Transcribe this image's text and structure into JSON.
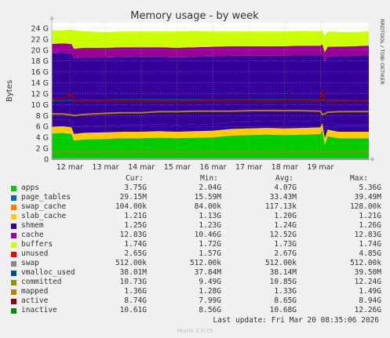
{
  "chart_data": {
    "type": "area",
    "title": "Memory usage - by week",
    "ylabel": "Bytes",
    "y_unit": "G",
    "ylim": [
      0,
      25
    ],
    "yticks": [
      0,
      2,
      4,
      6,
      8,
      10,
      12,
      14,
      16,
      18,
      20,
      22,
      24
    ],
    "ytick_labels": [
      "0",
      "2 G",
      "4 G",
      "6 G",
      "8 G",
      "10 G",
      "12 G",
      "14 G",
      "16 G",
      "18 G",
      "20 G",
      "22 G",
      "24 G"
    ],
    "x_range": [
      11.5,
      20.35
    ],
    "xticks": [
      12,
      13,
      14,
      15,
      16,
      17,
      18,
      19
    ],
    "xtick_labels": [
      "12 mar",
      "13 mar",
      "14 mar",
      "15 mar",
      "16 mar",
      "17 mar",
      "18 mar",
      "19 mar"
    ],
    "stack_order": [
      "apps",
      "page_tables",
      "swap_cache",
      "slab_cache",
      "shmem",
      "cache",
      "buffers",
      "unused"
    ],
    "line_series": [
      "swap",
      "vmalloc_used",
      "committed",
      "mapped",
      "active",
      "inactive"
    ],
    "x": [
      11.5,
      11.8,
      12.05,
      12.12,
      12.4,
      13.0,
      13.5,
      14.0,
      14.5,
      15.0,
      15.5,
      16.0,
      16.5,
      17.0,
      17.5,
      18.0,
      18.5,
      19.0,
      19.05,
      19.12,
      19.2,
      19.5,
      20.0,
      20.35
    ],
    "series": [
      {
        "name": "apps",
        "color": "#00cc00",
        "values": [
          4.7,
          4.8,
          4.6,
          3.4,
          3.6,
          3.7,
          3.8,
          3.8,
          3.9,
          3.8,
          3.9,
          4.0,
          4.3,
          4.4,
          4.5,
          4.4,
          4.5,
          4.6,
          5.36,
          2.6,
          4.2,
          3.8,
          3.8,
          3.8
        ]
      },
      {
        "name": "page_tables",
        "color": "#0066b3",
        "values": [
          0.03,
          0.03,
          0.03,
          0.03,
          0.03,
          0.03,
          0.03,
          0.03,
          0.03,
          0.03,
          0.03,
          0.03,
          0.03,
          0.03,
          0.03,
          0.03,
          0.03,
          0.03,
          0.03,
          0.03,
          0.03,
          0.03,
          0.03,
          0.03
        ]
      },
      {
        "name": "swap_cache",
        "color": "#ff8000",
        "values": [
          0.0001,
          0.0001,
          0.0001,
          0.0001,
          0.0001,
          0.0001,
          0.0001,
          0.0001,
          0.0001,
          0.0001,
          0.0001,
          0.0001,
          0.0001,
          0.0001,
          0.0001,
          0.0001,
          0.0001,
          0.0001,
          0.0001,
          0.0001,
          0.0001,
          0.0001,
          0.0001,
          0.0001
        ]
      },
      {
        "name": "slab_cache",
        "color": "#ffcc00",
        "values": [
          1.2,
          1.2,
          1.2,
          1.2,
          1.2,
          1.2,
          1.2,
          1.2,
          1.2,
          1.2,
          1.2,
          1.2,
          1.2,
          1.2,
          1.2,
          1.2,
          1.2,
          1.2,
          1.2,
          1.2,
          1.2,
          1.2,
          1.2,
          1.2
        ]
      },
      {
        "name": "shmem",
        "color": "#330099",
        "values": [
          1.25,
          1.25,
          1.25,
          1.25,
          1.25,
          1.25,
          1.25,
          1.25,
          1.25,
          1.25,
          1.25,
          1.25,
          1.25,
          1.25,
          1.25,
          1.25,
          1.25,
          1.25,
          1.25,
          1.25,
          1.25,
          1.25,
          1.25,
          1.25
        ]
      },
      {
        "name": "cache",
        "color": "#330099",
        "values": [
          12.2,
          12.2,
          12.3,
          12.6,
          12.6,
          12.5,
          12.5,
          12.5,
          12.4,
          12.4,
          12.4,
          12.4,
          12.2,
          12.1,
          12.0,
          12.1,
          12.1,
          12.0,
          11.5,
          12.8,
          12.2,
          12.6,
          12.7,
          12.8
        ]
      },
      {
        "name": "buffers",
        "color": "#990099",
        "values": [
          1.74,
          1.74,
          1.74,
          1.74,
          1.74,
          1.73,
          1.73,
          1.73,
          1.73,
          1.73,
          1.73,
          1.73,
          1.73,
          1.73,
          1.73,
          1.73,
          1.72,
          1.72,
          1.72,
          1.72,
          1.72,
          1.74,
          1.74,
          1.74
        ]
      },
      {
        "name": "unused",
        "color": "#ccff00",
        "values": [
          2.5,
          2.4,
          2.6,
          3.4,
          3.0,
          2.9,
          2.9,
          2.9,
          2.9,
          3.0,
          3.0,
          2.8,
          2.7,
          2.7,
          2.7,
          2.7,
          2.7,
          2.6,
          2.6,
          2.9,
          2.8,
          2.7,
          2.6,
          2.6
        ]
      },
      {
        "name": "swap",
        "color": "#ff0000",
        "values": [
          0.0005,
          0.0005,
          0.0005,
          0.0005,
          0.0005,
          0.0005,
          0.0005,
          0.0005,
          0.0005,
          0.0005,
          0.0005,
          0.0005,
          0.0005,
          0.0005,
          0.0005,
          0.0005,
          0.0005,
          0.0005,
          0.0005,
          0.0005,
          0.0005,
          0.0005,
          0.0005,
          0.0005
        ]
      },
      {
        "name": "vmalloc_used",
        "color": "#888888",
        "values": [
          0.038,
          0.038,
          0.038,
          0.038,
          0.038,
          0.038,
          0.038,
          0.038,
          0.038,
          0.038,
          0.038,
          0.038,
          0.038,
          0.038,
          0.038,
          0.038,
          0.038,
          0.038,
          0.038,
          0.038,
          0.038,
          0.038,
          0.038,
          0.038
        ]
      },
      {
        "name": "committed",
        "color": "#004d80",
        "values": [
          10.7,
          10.7,
          10.8,
          10.7,
          10.8,
          10.8,
          10.9,
          10.9,
          10.9,
          10.9,
          10.9,
          10.8,
          10.9,
          10.9,
          10.9,
          10.9,
          10.9,
          10.8,
          10.8,
          10.7,
          10.8,
          10.8,
          10.7,
          10.7
        ]
      },
      {
        "name": "mapped",
        "color": "#8f8f00",
        "values": [
          1.35,
          1.35,
          1.35,
          1.35,
          1.35,
          1.33,
          1.33,
          1.33,
          1.33,
          1.33,
          1.33,
          1.33,
          1.33,
          1.33,
          1.33,
          1.33,
          1.33,
          1.33,
          1.35,
          1.3,
          1.33,
          1.35,
          1.36,
          1.36
        ]
      },
      {
        "name": "active",
        "color": "#b38600",
        "values": [
          8.3,
          8.3,
          8.1,
          7.99,
          8.2,
          8.4,
          8.5,
          8.5,
          8.7,
          8.7,
          8.8,
          8.8,
          8.8,
          8.9,
          8.9,
          8.9,
          8.9,
          8.8,
          8.2,
          8.3,
          8.6,
          8.7,
          8.74,
          8.74
        ]
      },
      {
        "name": "inactive",
        "color": "#990000",
        "values": [
          11.0,
          11.1,
          12.0,
          10.6,
          10.6,
          10.7,
          10.7,
          10.7,
          10.6,
          10.6,
          10.6,
          10.7,
          10.8,
          10.8,
          10.7,
          10.8,
          10.8,
          10.7,
          12.26,
          10.8,
          10.6,
          10.6,
          10.6,
          10.61
        ]
      }
    ]
  },
  "legend": {
    "headers": {
      "cur": "Cur:",
      "min": "Min:",
      "avg": "Avg:",
      "max": "Max:"
    },
    "rows": [
      {
        "name": "apps",
        "color": "#00cc00",
        "cur": "3.75G",
        "min": "2.04G",
        "avg": "4.07G",
        "max": "5.36G"
      },
      {
        "name": "page_tables",
        "color": "#0066b3",
        "cur": "29.15M",
        "min": "15.59M",
        "avg": "33.43M",
        "max": "39.49M"
      },
      {
        "name": "swap_cache",
        "color": "#ff8000",
        "cur": "104.00k",
        "min": "84.00k",
        "avg": "117.13k",
        "max": "128.00k"
      },
      {
        "name": "slab_cache",
        "color": "#ffcc00",
        "cur": "1.21G",
        "min": "1.13G",
        "avg": "1.20G",
        "max": "1.21G"
      },
      {
        "name": "shmem",
        "color": "#330099",
        "cur": "1.25G",
        "min": "1.23G",
        "avg": "1.24G",
        "max": "1.26G"
      },
      {
        "name": "cache",
        "color": "#990099",
        "cur": "12.83G",
        "min": "10.46G",
        "avg": "12.52G",
        "max": "12.83G"
      },
      {
        "name": "buffers",
        "color": "#ccff00",
        "cur": "1.74G",
        "min": "1.72G",
        "avg": "1.73G",
        "max": "1.74G"
      },
      {
        "name": "unused",
        "color": "#ff0000",
        "cur": "2.65G",
        "min": "1.57G",
        "avg": "2.67G",
        "max": "4.85G"
      },
      {
        "name": "swap",
        "color": "#888888",
        "cur": "512.00k",
        "min": "512.00k",
        "avg": "512.00k",
        "max": "512.00k"
      },
      {
        "name": "vmalloc_used",
        "color": "#004d80",
        "cur": "38.01M",
        "min": "37.84M",
        "avg": "38.14M",
        "max": "39.50M"
      },
      {
        "name": "committed",
        "color": "#8f8f00",
        "cur": "10.73G",
        "min": "9.49G",
        "avg": "10.85G",
        "max": "12.24G"
      },
      {
        "name": "mapped",
        "color": "#b38600",
        "cur": "1.36G",
        "min": "1.28G",
        "avg": "1.33G",
        "max": "1.49G"
      },
      {
        "name": "active",
        "color": "#990000",
        "cur": "8.74G",
        "min": "7.99G",
        "avg": "8.65G",
        "max": "8.94G"
      },
      {
        "name": "inactive",
        "color": "#008f00",
        "cur": "10.61G",
        "min": "8.56G",
        "avg": "10.68G",
        "max": "12.26G"
      }
    ]
  },
  "last_update": "Last update: Fri Mar 20 08:35:06 2026",
  "side_label": "RRDTOOL / TOBI OETIKER",
  "footer": "Munin 2.0.75"
}
